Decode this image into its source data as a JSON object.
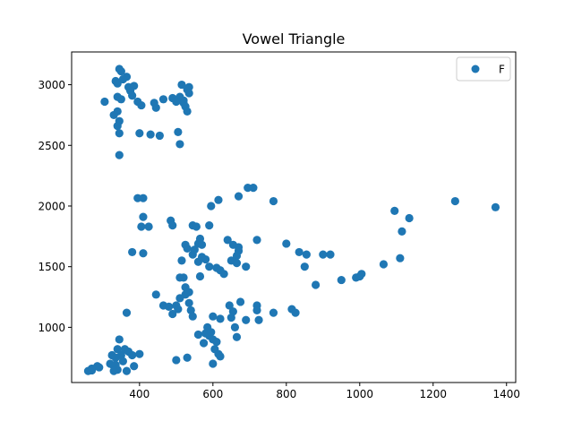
{
  "chart_data": {
    "type": "scatter",
    "title": "Vowel Triangle",
    "xlabel": "",
    "ylabel": "",
    "xlim": [
      215,
      1425
    ],
    "ylim": [
      545,
      3270
    ],
    "xticks": [
      400,
      600,
      800,
      1000,
      1200,
      1400
    ],
    "yticks": [
      1000,
      1500,
      2000,
      2500,
      3000
    ],
    "xtick_labels": [
      "400",
      "600",
      "800",
      "1000",
      "1200",
      "1400"
    ],
    "ytick_labels": [
      "1000",
      "1500",
      "2000",
      "2500",
      "3000"
    ],
    "grid": false,
    "legend": {
      "position": "top-right",
      "entries": [
        "F"
      ]
    },
    "colors": {
      "series": "#1f77b4",
      "axes": "#000000",
      "background": "#ffffff"
    },
    "series": [
      {
        "name": "F",
        "color": "#1f77b4",
        "points": [
          [
            345,
            3130
          ],
          [
            350,
            3110
          ],
          [
            365,
            3065
          ],
          [
            335,
            3030
          ],
          [
            340,
            3010
          ],
          [
            355,
            3045
          ],
          [
            370,
            2980
          ],
          [
            385,
            2990
          ],
          [
            375,
            2950
          ],
          [
            380,
            2910
          ],
          [
            340,
            2900
          ],
          [
            350,
            2880
          ],
          [
            395,
            2860
          ],
          [
            405,
            2830
          ],
          [
            340,
            2780
          ],
          [
            330,
            2750
          ],
          [
            345,
            2700
          ],
          [
            340,
            2660
          ],
          [
            345,
            2600
          ],
          [
            345,
            2420
          ],
          [
            305,
            2860
          ],
          [
            400,
            2600
          ],
          [
            430,
            2590
          ],
          [
            455,
            2580
          ],
          [
            440,
            2850
          ],
          [
            445,
            2810
          ],
          [
            465,
            2880
          ],
          [
            490,
            2890
          ],
          [
            510,
            2900
          ],
          [
            520,
            2870
          ],
          [
            500,
            2860
          ],
          [
            535,
            2980
          ],
          [
            515,
            3000
          ],
          [
            530,
            2960
          ],
          [
            535,
            2930
          ],
          [
            520,
            2850
          ],
          [
            525,
            2820
          ],
          [
            530,
            2780
          ],
          [
            505,
            2610
          ],
          [
            510,
            2510
          ],
          [
            395,
            2065
          ],
          [
            410,
            2065
          ],
          [
            405,
            1830
          ],
          [
            410,
            1910
          ],
          [
            425,
            1830
          ],
          [
            380,
            1620
          ],
          [
            410,
            1610
          ],
          [
            485,
            1880
          ],
          [
            490,
            1840
          ],
          [
            545,
            1840
          ],
          [
            555,
            1830
          ],
          [
            590,
            1840
          ],
          [
            595,
            2000
          ],
          [
            615,
            2050
          ],
          [
            670,
            2080
          ],
          [
            695,
            2150
          ],
          [
            710,
            2150
          ],
          [
            765,
            2040
          ],
          [
            525,
            1680
          ],
          [
            530,
            1650
          ],
          [
            545,
            1600
          ],
          [
            550,
            1640
          ],
          [
            560,
            1690
          ],
          [
            565,
            1730
          ],
          [
            570,
            1680
          ],
          [
            560,
            1540
          ],
          [
            570,
            1580
          ],
          [
            580,
            1560
          ],
          [
            590,
            1500
          ],
          [
            610,
            1490
          ],
          [
            620,
            1470
          ],
          [
            630,
            1440
          ],
          [
            640,
            1720
          ],
          [
            655,
            1680
          ],
          [
            670,
            1660
          ],
          [
            670,
            1630
          ],
          [
            665,
            1590
          ],
          [
            650,
            1550
          ],
          [
            665,
            1530
          ],
          [
            690,
            1500
          ],
          [
            720,
            1720
          ],
          [
            800,
            1690
          ],
          [
            835,
            1620
          ],
          [
            855,
            1600
          ],
          [
            850,
            1500
          ],
          [
            880,
            1350
          ],
          [
            900,
            1600
          ],
          [
            920,
            1600
          ],
          [
            950,
            1390
          ],
          [
            990,
            1410
          ],
          [
            1000,
            1420
          ],
          [
            1005,
            1440
          ],
          [
            1065,
            1520
          ],
          [
            1095,
            1960
          ],
          [
            1110,
            1570
          ],
          [
            1115,
            1790
          ],
          [
            1135,
            1900
          ],
          [
            1260,
            2040
          ],
          [
            1370,
            1990
          ],
          [
            515,
            1550
          ],
          [
            510,
            1410
          ],
          [
            520,
            1410
          ],
          [
            525,
            1330
          ],
          [
            525,
            1270
          ],
          [
            535,
            1290
          ],
          [
            510,
            1240
          ],
          [
            445,
            1270
          ],
          [
            465,
            1180
          ],
          [
            480,
            1170
          ],
          [
            490,
            1110
          ],
          [
            500,
            1180
          ],
          [
            505,
            1150
          ],
          [
            535,
            1200
          ],
          [
            540,
            1140
          ],
          [
            545,
            1090
          ],
          [
            565,
            1420
          ],
          [
            600,
            1090
          ],
          [
            620,
            1070
          ],
          [
            645,
            1180
          ],
          [
            655,
            1130
          ],
          [
            660,
            1000
          ],
          [
            675,
            1210
          ],
          [
            650,
            1080
          ],
          [
            690,
            1060
          ],
          [
            720,
            1180
          ],
          [
            720,
            1140
          ],
          [
            725,
            1060
          ],
          [
            765,
            1120
          ],
          [
            815,
            1150
          ],
          [
            825,
            1120
          ],
          [
            365,
            1120
          ],
          [
            345,
            900
          ],
          [
            340,
            820
          ],
          [
            325,
            770
          ],
          [
            335,
            750
          ],
          [
            350,
            770
          ],
          [
            360,
            820
          ],
          [
            370,
            800
          ],
          [
            380,
            770
          ],
          [
            400,
            780
          ],
          [
            355,
            720
          ],
          [
            385,
            680
          ],
          [
            330,
            680
          ],
          [
            320,
            700
          ],
          [
            335,
            690
          ],
          [
            340,
            650
          ],
          [
            330,
            640
          ],
          [
            285,
            680
          ],
          [
            290,
            670
          ],
          [
            270,
            660
          ],
          [
            260,
            640
          ],
          [
            270,
            645
          ],
          [
            365,
            640
          ],
          [
            500,
            730
          ],
          [
            530,
            750
          ],
          [
            560,
            940
          ],
          [
            575,
            870
          ],
          [
            580,
            950
          ],
          [
            585,
            1000
          ],
          [
            590,
            930
          ],
          [
            595,
            960
          ],
          [
            600,
            900
          ],
          [
            610,
            880
          ],
          [
            605,
            820
          ],
          [
            615,
            780
          ],
          [
            620,
            760
          ],
          [
            600,
            700
          ],
          [
            665,
            920
          ]
        ]
      }
    ]
  }
}
